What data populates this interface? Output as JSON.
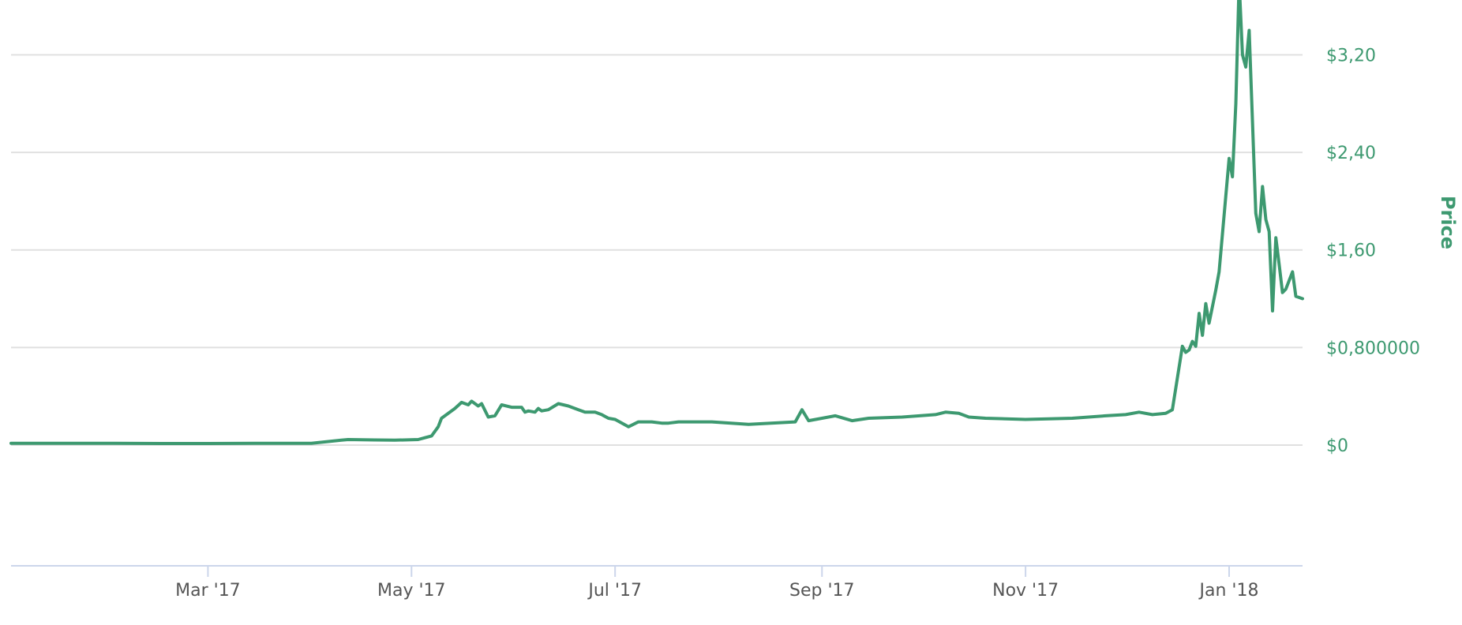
{
  "chart_data": {
    "type": "line",
    "title": "",
    "xlabel": "",
    "ylabel": "Price",
    "y_axis_side": "right",
    "grid": true,
    "ylim": [
      -0.99,
      3.52
    ],
    "xlim": [
      "2017-01-01",
      "2018-01-23"
    ],
    "y_ticks": [
      {
        "value": 0,
        "label": "$0"
      },
      {
        "value": 0.8,
        "label": "$0,800000"
      },
      {
        "value": 1.6,
        "label": "$1,60"
      },
      {
        "value": 2.4,
        "label": "$2,40"
      },
      {
        "value": 3.2,
        "label": "$3,20"
      }
    ],
    "x_ticks": [
      {
        "date": "2017-03-01",
        "label": "Mar '17"
      },
      {
        "date": "2017-05-01",
        "label": "May '17"
      },
      {
        "date": "2017-07-01",
        "label": "Jul '17"
      },
      {
        "date": "2017-09-01",
        "label": "Sep '17"
      },
      {
        "date": "2017-11-01",
        "label": "Nov '17"
      },
      {
        "date": "2018-01-01",
        "label": "Jan '18"
      }
    ],
    "colors": {
      "line": "#3d9970",
      "axis_text": "#3d9970",
      "grid": "#e0e0e0",
      "x_axis_line": "#ccd6eb",
      "x_tick_text": "#555555"
    },
    "series": [
      {
        "x": [
          "2017-01-01",
          "2017-01-15",
          "2017-02-01",
          "2017-02-15",
          "2017-03-01",
          "2017-03-15",
          "2017-04-01",
          "2017-04-10",
          "2017-04-12",
          "2017-04-20",
          "2017-04-26",
          "2017-05-03",
          "2017-05-05",
          "2017-05-07",
          "2017-05-09",
          "2017-05-10",
          "2017-05-14",
          "2017-05-16",
          "2017-05-18",
          "2017-05-19",
          "2017-05-21",
          "2017-05-22",
          "2017-05-24",
          "2017-05-26",
          "2017-05-28",
          "2017-05-31",
          "2017-06-03",
          "2017-06-04",
          "2017-06-05",
          "2017-06-07",
          "2017-06-08",
          "2017-06-09",
          "2017-06-11",
          "2017-06-14",
          "2017-06-17",
          "2017-06-20",
          "2017-06-22",
          "2017-06-25",
          "2017-06-27",
          "2017-06-29",
          "2017-07-01",
          "2017-07-05",
          "2017-07-08",
          "2017-07-12",
          "2017-07-15",
          "2017-07-17",
          "2017-07-20",
          "2017-07-30",
          "2017-08-10",
          "2017-08-24",
          "2017-08-26",
          "2017-08-28",
          "2017-09-01",
          "2017-09-05",
          "2017-09-10",
          "2017-09-15",
          "2017-09-25",
          "2017-10-05",
          "2017-10-08",
          "2017-10-12",
          "2017-10-15",
          "2017-10-20",
          "2017-11-01",
          "2017-11-15",
          "2017-11-25",
          "2017-12-01",
          "2017-12-05",
          "2017-12-09",
          "2017-12-13",
          "2017-12-15",
          "2017-12-18",
          "2017-12-19",
          "2017-12-20",
          "2017-12-21",
          "2017-12-22",
          "2017-12-23",
          "2017-12-24",
          "2017-12-25",
          "2017-12-26",
          "2017-12-28",
          "2017-12-29",
          "2018-01-01",
          "2018-01-02",
          "2018-01-03",
          "2018-01-04",
          "2018-01-05",
          "2018-01-06",
          "2018-01-07",
          "2018-01-09",
          "2018-01-10",
          "2018-01-11",
          "2018-01-12",
          "2018-01-13",
          "2018-01-14",
          "2018-01-15",
          "2018-01-16",
          "2018-01-17",
          "2018-01-18",
          "2018-01-20",
          "2018-01-21",
          "2018-01-22",
          "2018-01-23"
        ],
        "y": [
          0.015,
          0.015,
          0.014,
          0.013,
          0.013,
          0.014,
          0.015,
          0.04,
          0.045,
          0.042,
          0.04,
          0.045,
          0.06,
          0.075,
          0.15,
          0.22,
          0.3,
          0.35,
          0.33,
          0.36,
          0.32,
          0.34,
          0.23,
          0.24,
          0.33,
          0.31,
          0.31,
          0.27,
          0.28,
          0.27,
          0.3,
          0.28,
          0.29,
          0.34,
          0.32,
          0.29,
          0.27,
          0.27,
          0.25,
          0.22,
          0.21,
          0.15,
          0.19,
          0.19,
          0.18,
          0.18,
          0.19,
          0.19,
          0.17,
          0.19,
          0.29,
          0.2,
          0.22,
          0.24,
          0.2,
          0.22,
          0.23,
          0.25,
          0.27,
          0.26,
          0.23,
          0.22,
          0.21,
          0.22,
          0.24,
          0.25,
          0.27,
          0.25,
          0.26,
          0.29,
          0.81,
          0.76,
          0.78,
          0.85,
          0.81,
          1.08,
          0.9,
          1.16,
          1.0,
          1.27,
          1.42,
          2.35,
          2.2,
          2.8,
          3.8,
          3.2,
          3.1,
          3.4,
          1.9,
          1.75,
          2.12,
          1.85,
          1.75,
          1.1,
          1.7,
          1.48,
          1.25,
          1.28,
          1.42,
          1.22,
          1.21,
          1.2
        ]
      }
    ]
  }
}
